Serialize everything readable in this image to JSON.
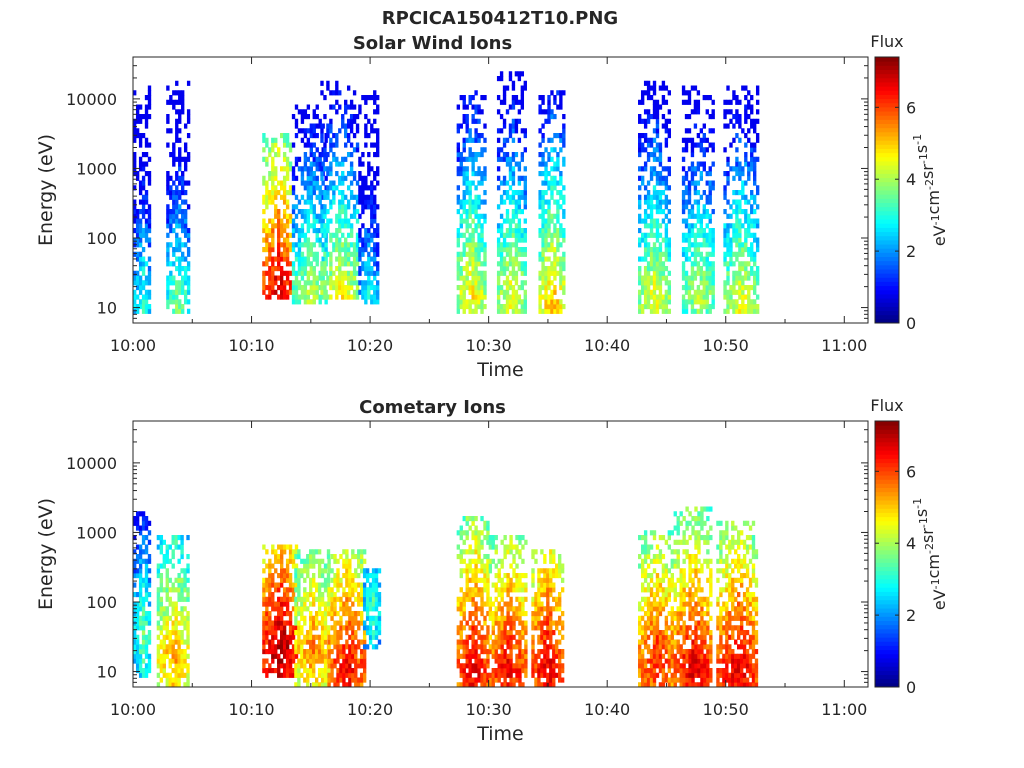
{
  "figure_title": "RPCICA150412T10.PNG",
  "colorbar": {
    "title": "Flux",
    "label_base": "eV",
    "label_exponents": [
      "-1",
      "-2",
      "-1",
      "-1"
    ],
    "label_units": [
      "cm",
      "sr",
      "s"
    ],
    "ticks": [
      0,
      2,
      4,
      6
    ],
    "range": [
      0,
      7.4
    ],
    "colormap": "jet"
  },
  "chart_data": [
    {
      "type": "heatmap",
      "title": "Solar Wind Ions",
      "xlabel": "Time",
      "ylabel": "Energy (eV)",
      "x_ticks": [
        "10:00",
        "10:10",
        "10:20",
        "10:30",
        "10:40",
        "10:50",
        "11:00"
      ],
      "x_range_minutes": [
        0,
        62
      ],
      "y_scale": "log",
      "y_ticks": [
        10,
        100,
        1000,
        10000
      ],
      "y_range": [
        6,
        40000
      ],
      "bursts": [
        {
          "t": [
            0.0,
            1.5
          ],
          "e": [
            8,
            14000
          ],
          "peak": 3.2,
          "peak_e": 12
        },
        {
          "t": [
            2.8,
            4.6
          ],
          "e": [
            8,
            17000
          ],
          "peak": 3.8,
          "peak_e": 9
        },
        {
          "t": [
            10.9,
            13.4
          ],
          "e": [
            12,
            3000
          ],
          "peak": 6.8,
          "peak_e": 18
        },
        {
          "t": [
            13.4,
            16.2
          ],
          "e": [
            10,
            8000
          ],
          "peak": 4.2,
          "peak_e": 14
        },
        {
          "t": [
            15.8,
            19.0
          ],
          "e": [
            12,
            16000
          ],
          "peak": 4.8,
          "peak_e": 11
        },
        {
          "t": [
            19.0,
            20.6
          ],
          "e": [
            10,
            12000
          ],
          "peak": 3.0,
          "peak_e": 12
        },
        {
          "t": [
            27.3,
            29.6
          ],
          "e": [
            8,
            13000
          ],
          "peak": 4.8,
          "peak_e": 14
        },
        {
          "t": [
            30.7,
            33.0
          ],
          "e": [
            8,
            22000
          ],
          "peak": 4.6,
          "peak_e": 14
        },
        {
          "t": [
            34.2,
            36.4
          ],
          "e": [
            8,
            13000
          ],
          "peak": 5.2,
          "peak_e": 10
        },
        {
          "t": [
            42.6,
            45.2
          ],
          "e": [
            8,
            16000
          ],
          "peak": 4.6,
          "peak_e": 12
        },
        {
          "t": [
            46.3,
            49.0
          ],
          "e": [
            8,
            15000
          ],
          "peak": 4.2,
          "peak_e": 14
        },
        {
          "t": [
            49.8,
            52.6
          ],
          "e": [
            8,
            14000
          ],
          "peak": 4.6,
          "peak_e": 10
        }
      ]
    },
    {
      "type": "heatmap",
      "title": "Cometary Ions",
      "xlabel": "Time",
      "ylabel": "Energy (eV)",
      "x_ticks": [
        "10:00",
        "10:10",
        "10:20",
        "10:30",
        "10:40",
        "10:50",
        "11:00"
      ],
      "x_range_minutes": [
        0,
        62
      ],
      "y_scale": "log",
      "y_ticks": [
        10,
        100,
        1000,
        10000
      ],
      "y_range": [
        6,
        40000
      ],
      "bursts": [
        {
          "t": [
            0.0,
            1.5
          ],
          "e": [
            8,
            2000
          ],
          "peak": 3.6,
          "peak_e": 30
        },
        {
          "t": [
            2.0,
            4.6
          ],
          "e": [
            6,
            800
          ],
          "peak": 5.4,
          "peak_e": 14
        },
        {
          "t": [
            10.9,
            13.8
          ],
          "e": [
            8,
            600
          ],
          "peak": 7.2,
          "peak_e": 18
        },
        {
          "t": [
            13.6,
            16.6
          ],
          "e": [
            6,
            500
          ],
          "peak": 5.6,
          "peak_e": 20
        },
        {
          "t": [
            16.4,
            19.6
          ],
          "e": [
            6,
            500
          ],
          "peak": 6.6,
          "peak_e": 10
        },
        {
          "t": [
            19.4,
            20.8
          ],
          "e": [
            20,
            300
          ],
          "peak": 3.4,
          "peak_e": 80
        },
        {
          "t": [
            27.3,
            30.0
          ],
          "e": [
            6,
            1500
          ],
          "peak": 6.8,
          "peak_e": 10
        },
        {
          "t": [
            30.0,
            33.2
          ],
          "e": [
            6,
            800
          ],
          "peak": 6.6,
          "peak_e": 10
        },
        {
          "t": [
            33.6,
            36.2
          ],
          "e": [
            6,
            500
          ],
          "peak": 6.8,
          "peak_e": 10
        },
        {
          "t": [
            42.6,
            45.6
          ],
          "e": [
            6,
            1000
          ],
          "peak": 6.4,
          "peak_e": 12
        },
        {
          "t": [
            45.6,
            48.8
          ],
          "e": [
            6,
            2300
          ],
          "peak": 6.8,
          "peak_e": 10
        },
        {
          "t": [
            49.2,
            52.6
          ],
          "e": [
            6,
            1400
          ],
          "peak": 6.8,
          "peak_e": 10
        }
      ]
    }
  ]
}
